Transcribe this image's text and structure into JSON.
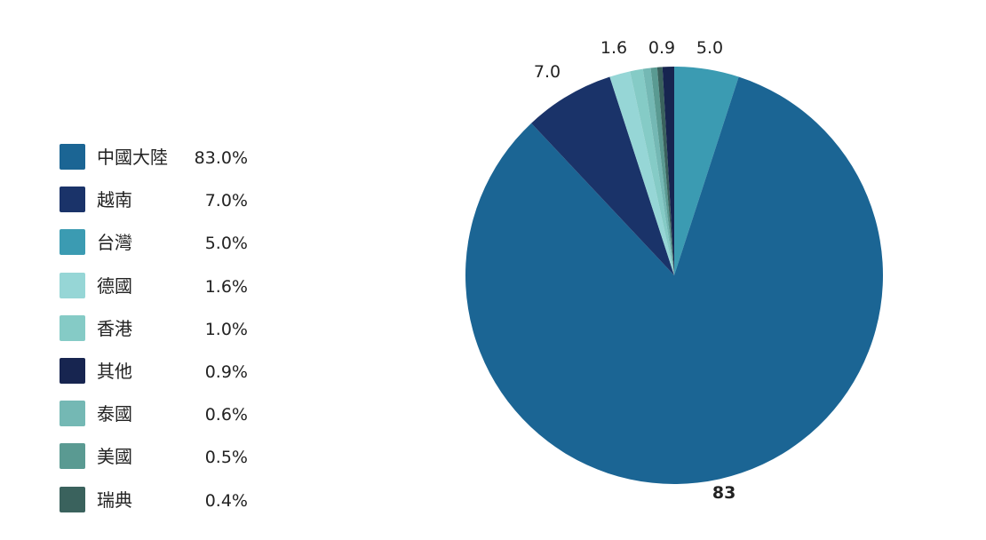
{
  "chart_data": {
    "type": "pie",
    "series": [
      {
        "name": "中國大陸",
        "value": 83,
        "percent_label": "83.0%",
        "color": "#1b6594",
        "slice_label": "83",
        "slice_label_bold": true
      },
      {
        "name": "越南",
        "value": 7.0,
        "percent_label": "7.0%",
        "color": "#1a3369",
        "slice_label": "7.0"
      },
      {
        "name": "台灣",
        "value": 5.0,
        "percent_label": "5.0%",
        "color": "#3b9bb2",
        "slice_label": "5.0"
      },
      {
        "name": "德國",
        "value": 1.6,
        "percent_label": "1.6%",
        "color": "#96d6d6",
        "slice_label": "1.6"
      },
      {
        "name": "香港",
        "value": 1.0,
        "percent_label": "1.0%",
        "color": "#85cbc6",
        "slice_label": ""
      },
      {
        "name": "其他",
        "value": 0.9,
        "percent_label": "0.9%",
        "color": "#172550",
        "slice_label": "0.9"
      },
      {
        "name": "泰國",
        "value": 0.6,
        "percent_label": "0.6%",
        "color": "#74b8b4",
        "slice_label": ""
      },
      {
        "name": "美國",
        "value": 0.5,
        "percent_label": "0.5%",
        "color": "#5a9a92",
        "slice_label": ""
      },
      {
        "name": "瑞典",
        "value": 0.4,
        "percent_label": "0.4%",
        "color": "#3a625d",
        "slice_label": ""
      }
    ],
    "slice_order_clockwise_from_top": [
      "台灣",
      "中國大陸",
      "越南",
      "德國",
      "香港",
      "泰國",
      "美國",
      "瑞典",
      "其他"
    ],
    "legend_position": "left"
  }
}
